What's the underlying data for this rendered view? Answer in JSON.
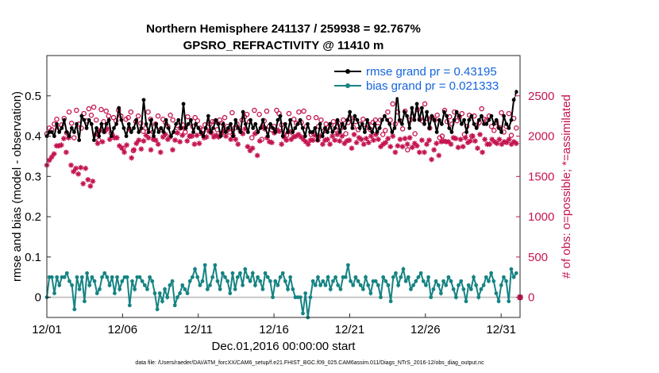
{
  "chart_data": {
    "type": "line",
    "title": "Northern Hemisphere 241137 / 259938 = 92.767%",
    "subtitle": "GPSRO_REFRACTIVITY @ 11410 m",
    "xlabel": "Dec.01,2016 00:00:00 start",
    "ylabel_left": "rmse and bias (model - observation)",
    "ylabel_right": "# of obs: o=possible; *=assimilated",
    "footnote": "data file: /Users/raeder/DAI/ATM_forcXX/CAM6_setup/f.e21.FHIST_BGC.f09_025.CAM6assim.011/Diags_NTrS_2016-12/obs_diag_output.nc",
    "xlim": [
      0,
      31.25
    ],
    "x_tick_values": [
      0,
      5,
      10,
      15,
      20,
      25,
      30
    ],
    "x_tick_labels": [
      "12/01",
      "12/06",
      "12/11",
      "12/16",
      "12/21",
      "12/26",
      "12/31"
    ],
    "ylim_left": [
      -0.05,
      0.6
    ],
    "y_ticks_left": [
      0,
      0.1,
      0.2,
      0.3,
      0.4,
      0.5
    ],
    "y_tick_labels_left": [
      "0",
      "0.1",
      "0.2",
      "0.3",
      "0.4",
      "0.5"
    ],
    "ylim_right": [
      -250,
      3000
    ],
    "y_ticks_right": [
      0,
      500,
      1000,
      1500,
      2000,
      2500
    ],
    "y_tick_labels_right": [
      "0",
      "500",
      "1000",
      "1500",
      "2000",
      "2500"
    ],
    "legend": [
      {
        "name": "rmse grand pr = 0.43195"
      },
      {
        "name": "bias grand pr = 0.021333"
      }
    ],
    "series": [
      {
        "name": "rmse",
        "axis": "left",
        "values": [
          0.4,
          0.41,
          0.41,
          0.4,
          0.43,
          0.41,
          0.42,
          0.44,
          0.41,
          0.4,
          0.42,
          0.41,
          0.43,
          0.39,
          0.45,
          0.44,
          0.42,
          0.44,
          0.43,
          0.39,
          0.42,
          0.4,
          0.43,
          0.41,
          0.43,
          0.44,
          0.4,
          0.42,
          0.43,
          0.47,
          0.44,
          0.42,
          0.4,
          0.43,
          0.41,
          0.42,
          0.44,
          0.41,
          0.42,
          0.49,
          0.43,
          0.41,
          0.44,
          0.4,
          0.43,
          0.41,
          0.42,
          0.41,
          0.44,
          0.42,
          0.4,
          0.41,
          0.43,
          0.44,
          0.42,
          0.48,
          0.42,
          0.43,
          0.44,
          0.41,
          0.43,
          0.42,
          0.41,
          0.4,
          0.42,
          0.45,
          0.41,
          0.42,
          0.44,
          0.43,
          0.4,
          0.43,
          0.41,
          0.42,
          0.43,
          0.4,
          0.44,
          0.42,
          0.41,
          0.46,
          0.43,
          0.41,
          0.44,
          0.42,
          0.43,
          0.41,
          0.42,
          0.44,
          0.42,
          0.4,
          0.43,
          0.42,
          0.41,
          0.44,
          0.45,
          0.4,
          0.43,
          0.41,
          0.44,
          0.41,
          0.42,
          0.43,
          0.44,
          0.42,
          0.4,
          0.43,
          0.41,
          0.41,
          0.42,
          0.39,
          0.43,
          0.4,
          0.42,
          0.41,
          0.43,
          0.41,
          0.42,
          0.44,
          0.41,
          0.43,
          0.42,
          0.44,
          0.46,
          0.42,
          0.45,
          0.44,
          0.42,
          0.43,
          0.41,
          0.44,
          0.42,
          0.41,
          0.43,
          0.41,
          0.42,
          0.44,
          0.45,
          0.44,
          0.43,
          0.41,
          0.42,
          0.51,
          0.44,
          0.43,
          0.46,
          0.45,
          0.42,
          0.47,
          0.44,
          0.48,
          0.44,
          0.47,
          0.43,
          0.46,
          0.42,
          0.45,
          0.44,
          0.41,
          0.44,
          0.43,
          0.46,
          0.45,
          0.42,
          0.41,
          0.44,
          0.46,
          0.45,
          0.43,
          0.44,
          0.41,
          0.44,
          0.45,
          0.43,
          0.42,
          0.44,
          0.45,
          0.43,
          0.43,
          0.44,
          0.45,
          0.43,
          0.44,
          0.42,
          0.41,
          0.45,
          0.43,
          0.42,
          0.44,
          0.49,
          0.51
        ]
      },
      {
        "name": "bias",
        "axis": "left",
        "values": [
          0.0,
          0.05,
          0.05,
          0.01,
          0.05,
          0.03,
          0.05,
          0.05,
          0.06,
          0.04,
          0.03,
          -0.03,
          0.05,
          0.02,
          0.05,
          -0.01,
          0.06,
          0.03,
          0.05,
          0.04,
          0.01,
          0.02,
          0.05,
          0.06,
          0.05,
          0.03,
          0.05,
          0.01,
          0.05,
          0.02,
          0.04,
          0.05,
          0.05,
          -0.02,
          0.04,
          0.02,
          0.05,
          0.05,
          0.04,
          0.03,
          0.02,
          0.05,
          0.04,
          0.01,
          -0.03,
          0.01,
          -0.01,
          0.02,
          0.0,
          0.03,
          0.04,
          -0.02,
          0.0,
          0.01,
          0.03,
          0.02,
          0.01,
          0.04,
          0.05,
          0.07,
          0.05,
          0.03,
          0.04,
          0.08,
          0.02,
          0.03,
          0.05,
          0.08,
          0.04,
          0.02,
          0.06,
          0.05,
          0.04,
          0.01,
          0.06,
          0.02,
          0.05,
          0.06,
          0.03,
          0.07,
          0.05,
          0.04,
          0.06,
          0.03,
          0.05,
          0.04,
          0.02,
          0.06,
          0.05,
          0.04,
          0.0,
          0.04,
          0.03,
          0.05,
          0.06,
          0.04,
          0.02,
          0.05,
          0.02,
          0.0,
          0.0,
          0.0,
          -0.04,
          0.01,
          -0.05,
          0.0,
          0.04,
          0.03,
          0.05,
          0.03,
          0.04,
          0.03,
          0.05,
          0.02,
          0.04,
          0.05,
          0.03,
          0.02,
          0.05,
          0.05,
          0.08,
          0.04,
          0.03,
          0.05,
          0.04,
          0.03,
          0.02,
          0.05,
          0.03,
          0.01,
          0.04,
          0.04,
          0.03,
          0.0,
          0.05,
          0.04,
          0.03,
          -0.01,
          0.05,
          0.06,
          0.03,
          0.05,
          0.07,
          0.04,
          0.05,
          0.02,
          0.03,
          0.04,
          0.05,
          0.06,
          0.04,
          0.03,
          0.05,
          0.0,
          0.02,
          0.04,
          0.03,
          0.01,
          0.04,
          0.03,
          0.05,
          0.04,
          0.02,
          0.0,
          0.03,
          0.04,
          0.02,
          -0.01,
          0.03,
          0.02,
          0.05,
          0.03,
          0.0,
          0.02,
          0.03,
          0.05,
          0.04,
          0.06,
          0.04,
          0.01,
          -0.01,
          0.03,
          0.05,
          0.04,
          -0.01,
          0.07,
          0.05,
          0.06
        ]
      },
      {
        "name": "possible",
        "axis": "right",
        "marker": "o",
        "values": [
          2030,
          2100,
          2080,
          2150,
          2210,
          2100,
          2140,
          2220,
          2040,
          2300,
          2160,
          1980,
          2320,
          2150,
          2100,
          2280,
          2190,
          2340,
          2260,
          2360,
          2200,
          1950,
          2330,
          2180,
          2310,
          2250,
          2040,
          2230,
          2190,
          2320,
          2250,
          1850,
          2210,
          2230,
          2300,
          1820,
          2180,
          2250,
          2160,
          2060,
          2100,
          2300,
          2210,
          2050,
          2150,
          2250,
          2080,
          2210,
          2170,
          2120,
          2260,
          2200,
          2060,
          2130,
          2100,
          2140,
          2050,
          2240,
          2000,
          2120,
          2230,
          2190,
          2100,
          2080,
          2140,
          2110,
          2150,
          2180,
          2180,
          2080,
          2200,
          2160,
          2230,
          2120,
          2050,
          2290,
          2100,
          2150,
          2100,
          2200,
          2240,
          2270,
          2180,
          1980,
          2320,
          2050,
          2270,
          1960,
          2190,
          2310,
          2120,
          2080,
          2120,
          2320,
          2280,
          2140,
          2020,
          2010,
          2280,
          2050,
          2210,
          2160,
          2300,
          2170,
          2310,
          2120,
          2230,
          2020,
          2030,
          2230,
          2120,
          2200,
          2060,
          2150,
          2110,
          2140,
          2180,
          2080,
          2160,
          2100,
          2200,
          2030,
          2170,
          2220,
          2110,
          2180,
          2080,
          2150,
          2210,
          2100,
          2150,
          2080,
          2170,
          2200,
          2120,
          2200,
          2020,
          2070,
          2300,
          2200,
          2400,
          2150,
          2300,
          2190,
          2090,
          2310,
          1830,
          2200,
          2250,
          2030,
          2330,
          2210,
          2190,
          2400,
          2220,
          2100,
          2230,
          2200,
          2260,
          1980,
          2000,
          2320,
          2180,
          2240,
          2150,
          2300,
          2190,
          2240,
          2280,
          2020,
          2120,
          2260,
          2000,
          2250,
          2130,
          2170,
          2340,
          2210,
          2200,
          2250,
          2120,
          2070,
          2170,
          2110,
          2290,
          2050,
          2120,
          2280,
          2010,
          2220,
          2100
        ]
      },
      {
        "name": "assimilated",
        "axis": "right",
        "marker": "*",
        "values": [
          1640,
          1700,
          1740,
          1780,
          1880,
          1880,
          1890,
          1970,
          1800,
          1980,
          1640,
          1560,
          1600,
          1530,
          1610,
          1410,
          1600,
          1460,
          1380,
          1440,
          2020,
          1910,
          2070,
          1930,
          2060,
          2090,
          1960,
          2020,
          1980,
          1980,
          1880,
          1850,
          1800,
          1890,
          2090,
          1730,
          1830,
          1910,
          1950,
          1840,
          1940,
          2010,
          1980,
          1830,
          1960,
          1950,
          1900,
          1800,
          1990,
          2020,
          1960,
          1990,
          1830,
          1950,
          2040,
          1930,
          2010,
          2100,
          1940,
          2000,
          2000,
          1900,
          2010,
          1910,
          2030,
          1980,
          1990,
          2060,
          2040,
          1990,
          2010,
          1990,
          2020,
          2060,
          2000,
          2080,
          1960,
          2010,
          1960,
          1900,
          2060,
          2030,
          2090,
          1870,
          1820,
          1850,
          2030,
          1760,
          1940,
          2120,
          2090,
          1980,
          1930,
          1920,
          2040,
          2080,
          2060,
          1900,
          1990,
          1950,
          2060,
          1960,
          1990,
          2000,
          2020,
          1990,
          1960,
          1930,
          1900,
          1950,
          1950,
          2010,
          1950,
          2000,
          1900,
          1950,
          1960,
          1900,
          2000,
          1950,
          2020,
          1940,
          2000,
          1910,
          1940,
          1950,
          1850,
          2020,
          1920,
          1980,
          1960,
          1900,
          1970,
          1920,
          2000,
          1950,
          2020,
          1960,
          1870,
          1900,
          1920,
          1970,
          1870,
          2000,
          1800,
          1880,
          1960,
          1870,
          1970,
          1900,
          1980,
          1860,
          1910,
          1880,
          1800,
          1950,
          1800,
          1900,
          1950,
          1710,
          1830,
          1910,
          1760,
          1930,
          1940,
          1930,
          1930,
          1900,
          1980,
          1970,
          1860,
          1960,
          1870,
          1980,
          1920,
          1940,
          2000,
          1940,
          1850,
          2020,
          1800,
          1960,
          1900,
          1900,
          1960,
          1930,
          1910,
          1960,
          1900,
          1930,
          1920,
          1960,
          1900,
          1930,
          1910
        ]
      }
    ]
  },
  "colors": {
    "rmse": "#000000",
    "bias": "#168383",
    "obs": "#c4144f",
    "legend_text": "#1464dc",
    "zero_line": "#c8c8c8"
  }
}
